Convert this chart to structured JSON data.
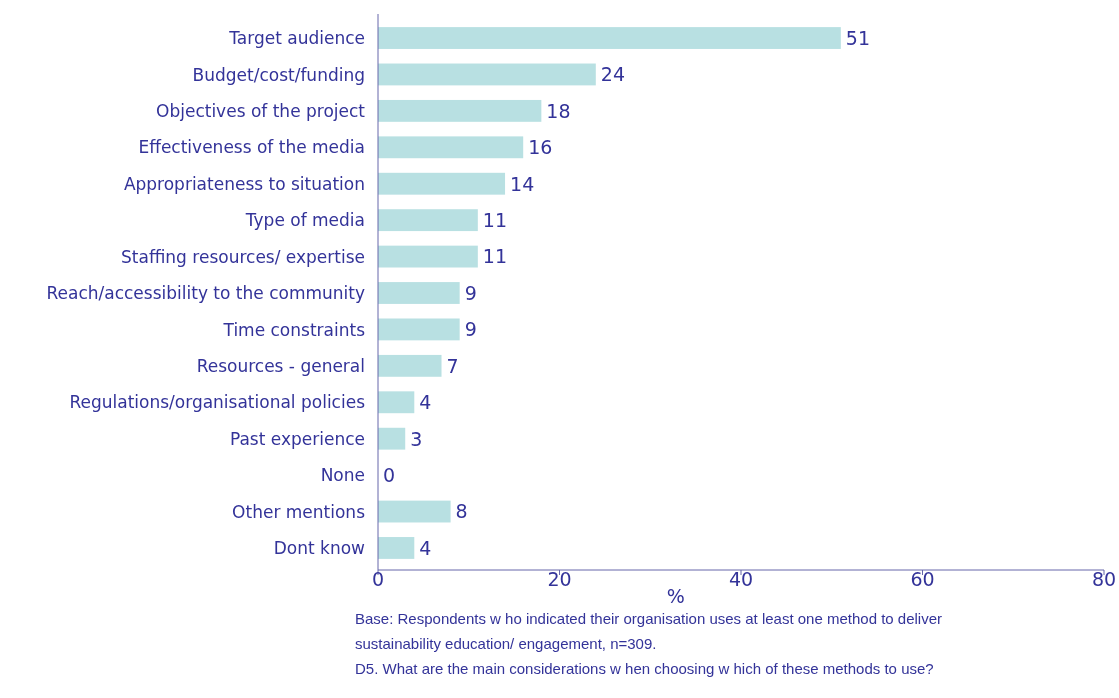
{
  "chart_data": {
    "type": "bar",
    "orientation": "horizontal",
    "categories": [
      "Target audience",
      "Budget/cost/funding",
      "Objectives of the project",
      "Effectiveness of the media",
      "Appropriateness to situation",
      "Type of media",
      "Staffing resources/ expertise",
      "Reach/accessibility to the community",
      "Time constraints",
      "Resources - general",
      "Regulations/organisational policies",
      "Past experience",
      "None",
      "Other mentions",
      "Dont know"
    ],
    "values": [
      51,
      24,
      18,
      16,
      14,
      11,
      11,
      9,
      9,
      7,
      4,
      3,
      0,
      8,
      4
    ],
    "color": "#b8e0e2",
    "xlim": [
      0,
      80
    ],
    "xticks": [
      0,
      20,
      40,
      60,
      80
    ],
    "xlabel": "%",
    "data_labels": true,
    "grid": false,
    "annotations": [
      "Base:  Respondents w ho indicated their organisation uses at least one method to deliver",
      "sustainability education/ engagement, n=309.",
      "D5. What are the main considerations w hen choosing w hich of these methods to use?"
    ]
  }
}
